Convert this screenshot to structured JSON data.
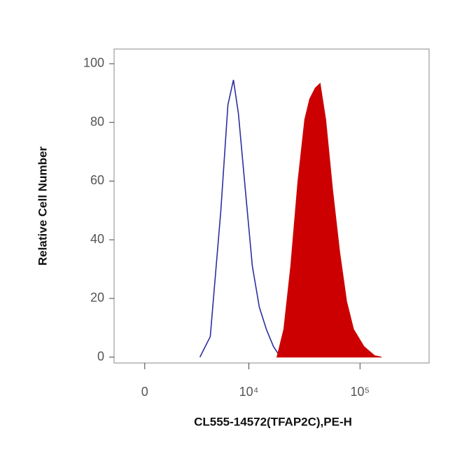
{
  "chart_data": {
    "type": "histogram-overlay",
    "xlabel": "CL555-14572(TFAP2C),PE-H",
    "ylabel": "Relative Cell Number",
    "xscale": "biexponential",
    "xlim": [
      -1600,
      415000
    ],
    "xticks": [
      0,
      {
        "value": 10000,
        "label": "10⁴"
      },
      {
        "value": 100000,
        "label": "10⁵"
      }
    ],
    "ylim": [
      -2,
      105
    ],
    "yticks": [
      0,
      20,
      40,
      60,
      80,
      100
    ],
    "series": [
      {
        "color": "#2e2ea0",
        "fill": false,
        "x": [
          3320,
          4270,
          5450,
          6370,
          7190,
          8000,
          9280,
          10760,
          12470,
          14440,
          16740,
          19380
        ],
        "values": [
          0,
          7,
          50,
          86,
          94.5,
          83,
          57,
          31,
          17,
          9.5,
          3.6,
          0
        ]
      },
      {
        "color": "#cc0000",
        "fill": true,
        "x": [
          17980,
          20730,
          23960,
          27710,
          31990,
          35410,
          39730,
          43940,
          49300,
          56930,
          65740,
          75950,
          87640,
          108800,
          135100,
          156000
        ],
        "values": [
          0,
          9.5,
          31,
          59.5,
          81,
          88,
          91.7,
          93.3,
          81,
          57,
          36,
          19,
          9.5,
          3.6,
          0.5,
          0
        ]
      }
    ]
  }
}
